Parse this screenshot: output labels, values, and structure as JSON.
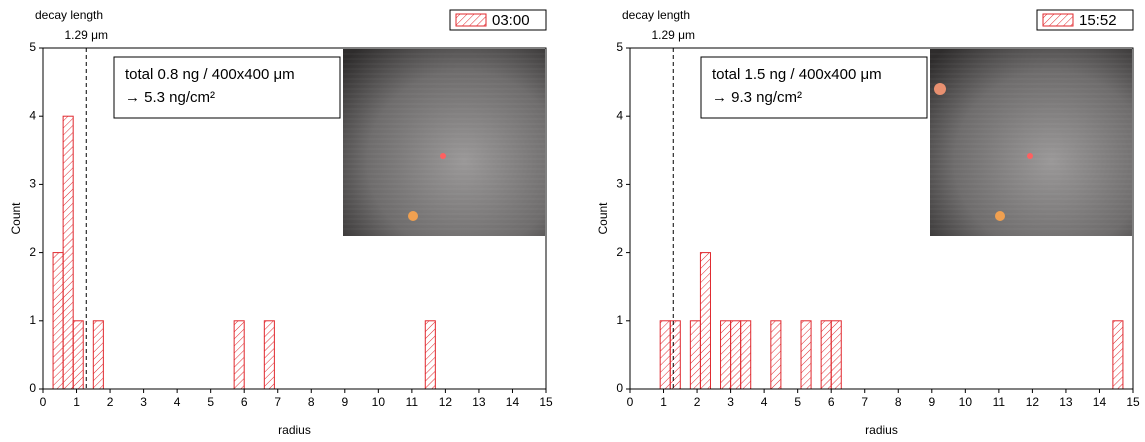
{
  "chart_data": [
    {
      "type": "histogram",
      "xlabel": "radius",
      "ylabel": "Count",
      "color": "#e0282e",
      "legend": "03:00",
      "legend_position": "upper right",
      "bins": [
        0.3,
        0.6,
        0.9,
        1.2,
        1.5,
        1.8,
        2.1,
        2.4,
        2.7,
        3,
        3.3,
        3.6,
        3.9,
        4.2,
        4.5,
        4.8,
        5.1,
        5.4,
        5.7,
        6,
        6.3,
        6.6,
        6.9,
        7.2,
        7.5,
        7.8,
        8.1,
        8.4,
        8.7,
        9,
        9.3,
        9.6,
        9.9,
        10.2,
        10.5,
        10.8,
        11.1,
        11.4,
        11.7
      ],
      "values": [
        2,
        4,
        1,
        0,
        1,
        0,
        0,
        0,
        0,
        0,
        0,
        0,
        0,
        0,
        0,
        0,
        0,
        0,
        1,
        0,
        0,
        1,
        0,
        0,
        0,
        0,
        0,
        0,
        0,
        0,
        0,
        0,
        0,
        0,
        0,
        0,
        0,
        1
      ],
      "xlim": [
        0,
        15
      ],
      "xticks": [
        0,
        1,
        2,
        3,
        4,
        5,
        6,
        7,
        8,
        9,
        10,
        11,
        12,
        13,
        14,
        15
      ],
      "ylim": [
        0,
        5
      ],
      "yticks": [
        0,
        1,
        2,
        3,
        4,
        5
      ],
      "decay_title": "decay length",
      "decay_length": {
        "value": 1.29,
        "label": "1.29 μm"
      },
      "annotation": [
        "total 0.8 ng / 400x400 μm",
        "→ 5.3 ng/cm²"
      ]
    },
    {
      "type": "histogram",
      "xlabel": "radius",
      "ylabel": "Count",
      "color": "#e0282e",
      "legend": "15:52",
      "legend_position": "upper right",
      "bins": [
        0.9,
        1.2,
        1.5,
        1.8,
        2.1,
        2.4,
        2.7,
        3,
        3.3,
        3.6,
        3.9,
        4.2,
        4.5,
        4.8,
        5.1,
        5.4,
        5.7,
        6,
        6.3,
        6.6,
        6.9,
        7.2,
        7.5,
        7.8,
        8.1,
        8.4,
        8.7,
        9,
        9.3,
        9.6,
        9.9,
        10.2,
        10.5,
        10.8,
        11.1,
        11.4,
        11.7,
        12,
        12.3,
        12.6,
        12.9,
        13.2,
        13.5,
        13.8,
        14.1,
        14.4,
        14.7
      ],
      "values": [
        1,
        1,
        0,
        1,
        2,
        0,
        1,
        1,
        1,
        0,
        0,
        1,
        0,
        0,
        1,
        0,
        1,
        1,
        0,
        0,
        0,
        0,
        0,
        0,
        0,
        0,
        0,
        0,
        0,
        0,
        0,
        0,
        0,
        0,
        0,
        0,
        0,
        0,
        0,
        0,
        0,
        0,
        0,
        0,
        0,
        1
      ],
      "xlim": [
        0,
        15
      ],
      "xticks": [
        0,
        1,
        2,
        3,
        4,
        5,
        6,
        7,
        8,
        9,
        10,
        11,
        12,
        13,
        14,
        15
      ],
      "ylim": [
        0,
        5
      ],
      "yticks": [
        0,
        1,
        2,
        3,
        4,
        5
      ],
      "decay_title": "decay length",
      "decay_length": {
        "value": 1.29,
        "label": "1.29 μm"
      },
      "annotation": [
        "total 1.5 ng / 400x400 μm",
        "→ 9.3 ng/cm²"
      ]
    }
  ]
}
